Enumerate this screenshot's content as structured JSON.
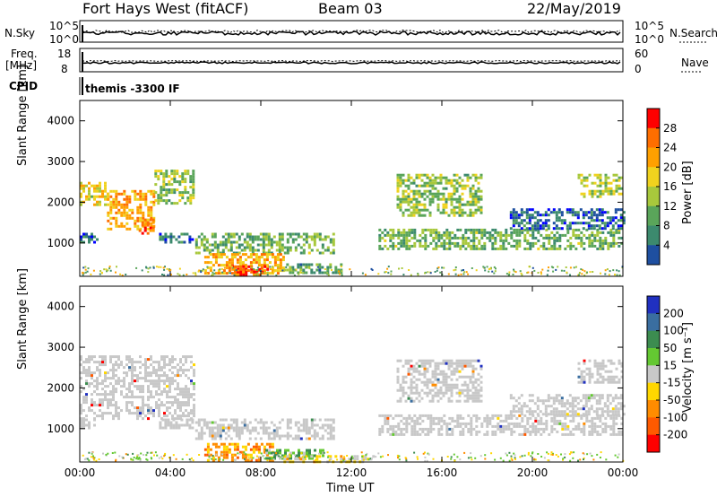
{
  "header": {
    "station": "Fort Hays West (fitACF)",
    "beam": "Beam 03",
    "date": "22/May/2019"
  },
  "strip_labels": {
    "nsky": "N.Sky",
    "nsky_ticks": [
      "10^5",
      "10^0"
    ],
    "nsearch": "N.Search",
    "nsearch_ticks": [
      "10^5",
      "10^0"
    ],
    "freq_line1": "Freq.",
    "freq_line2": "[MHz]",
    "freq_ticks": [
      "18",
      "8"
    ],
    "nave": "Nave",
    "nave_ticks": [
      "60",
      "0"
    ],
    "cpid": "CPID",
    "cpid_value": "themis -3300 IF"
  },
  "colors": {
    "power_scale": [
      "#0000ff",
      "#1e4fa0",
      "#3c8a6e",
      "#5aa55a",
      "#a8c83c",
      "#f0d21e",
      "#ffa000",
      "#ff6e00",
      "#ff0000"
    ],
    "velocity_scale": [
      "#2030c0",
      "#3a6ea0",
      "#3c8c50",
      "#64c832",
      "#c8c8c8",
      "#ffd700",
      "#ff8c00",
      "#ff5a00",
      "#ff0000"
    ],
    "noise_gray": "#c8c8c8"
  },
  "chart_data": [
    {
      "type": "heatmap",
      "title": "Power",
      "ylabel": "Slant Range [km]",
      "xlabel": "Time UT",
      "x_ticks": [
        "00:00",
        "04:00",
        "08:00",
        "12:00",
        "16:00",
        "20:00",
        "00:00"
      ],
      "xlim_hours": [
        0,
        24
      ],
      "ylim_km": [
        180,
        4500
      ],
      "y_ticks": [
        "1000",
        "2000",
        "3000",
        "4000"
      ],
      "y_tick_values": [
        1000,
        2000,
        3000,
        4000
      ],
      "colorbar_label": "Power [dB]",
      "colorbar_ticks": [
        "28",
        "24",
        "20",
        "16",
        "12",
        "8",
        "4"
      ],
      "colorbar_range": [
        0,
        30
      ],
      "echo_regions": [
        {
          "t_start": 0.0,
          "t_end": 1.2,
          "range_low": 1950,
          "range_high": 2500,
          "level": 18
        },
        {
          "t_start": 1.2,
          "t_end": 3.3,
          "range_low": 1350,
          "range_high": 2300,
          "level": 22
        },
        {
          "t_start": 2.6,
          "t_end": 3.2,
          "range_low": 1250,
          "range_high": 1600,
          "level": 24
        },
        {
          "t_start": 3.3,
          "t_end": 5.0,
          "range_low": 2000,
          "range_high": 2800,
          "level": 14
        },
        {
          "t_start": 0.0,
          "t_end": 0.8,
          "range_low": 1050,
          "range_high": 1250,
          "level": 6
        },
        {
          "t_start": 3.5,
          "t_end": 5.0,
          "range_low": 1050,
          "range_high": 1250,
          "level": 6
        },
        {
          "t_start": 5.1,
          "t_end": 11.2,
          "range_low": 750,
          "range_high": 1250,
          "level": 12
        },
        {
          "t_start": 5.5,
          "t_end": 9.0,
          "range_low": 250,
          "range_high": 750,
          "level": 22
        },
        {
          "t_start": 6.7,
          "t_end": 8.3,
          "range_low": 250,
          "range_high": 450,
          "level": 28
        },
        {
          "t_start": 9.0,
          "t_end": 11.5,
          "range_low": 250,
          "range_high": 500,
          "level": 10
        },
        {
          "t_start": 13.2,
          "t_end": 24.0,
          "range_low": 850,
          "range_high": 1350,
          "level": 12
        },
        {
          "t_start": 14.0,
          "t_end": 17.8,
          "range_low": 1700,
          "range_high": 2700,
          "level": 14
        },
        {
          "t_start": 22.0,
          "t_end": 24.0,
          "range_low": 2150,
          "range_high": 2700,
          "level": 16
        },
        {
          "t_start": 19.0,
          "t_end": 24.0,
          "range_low": 1350,
          "range_high": 1850,
          "level": 5
        }
      ]
    },
    {
      "type": "heatmap",
      "title": "Velocity",
      "ylabel": "Slant Range [km]",
      "xlabel": "Time UT",
      "x_ticks": [
        "00:00",
        "04:00",
        "08:00",
        "12:00",
        "16:00",
        "20:00",
        "00:00"
      ],
      "xlim_hours": [
        0,
        24
      ],
      "ylim_km": [
        180,
        4500
      ],
      "y_ticks": [
        "1000",
        "2000",
        "3000",
        "4000"
      ],
      "y_tick_values": [
        1000,
        2000,
        3000,
        4000
      ],
      "colorbar_label": "Velocity [m s⁻¹]",
      "colorbar_ticks": [
        "200",
        "100",
        "50",
        "15",
        "-15",
        "-50",
        "-100",
        "-200"
      ],
      "colorbar_range": [
        -250,
        250
      ],
      "echo_regions": [
        {
          "t_start": 0.0,
          "t_end": 5.0,
          "range_low": 1250,
          "range_high": 2800,
          "velocity": 0
        },
        {
          "t_start": 0.0,
          "t_end": 0.8,
          "range_low": 1050,
          "range_high": 1250,
          "velocity": 0
        },
        {
          "t_start": 3.5,
          "t_end": 5.0,
          "range_low": 1050,
          "range_high": 1250,
          "velocity": 0
        },
        {
          "t_start": 5.1,
          "t_end": 11.2,
          "range_low": 750,
          "range_high": 1250,
          "velocity": 0
        },
        {
          "t_start": 5.5,
          "t_end": 8.5,
          "range_low": 250,
          "range_high": 650,
          "velocity": -70
        },
        {
          "t_start": 8.2,
          "t_end": 10.8,
          "range_low": 300,
          "range_high": 500,
          "velocity": 40
        },
        {
          "t_start": 9.0,
          "t_end": 13.0,
          "range_low": 200,
          "range_high": 350,
          "velocity": -30
        },
        {
          "t_start": 13.2,
          "t_end": 24.0,
          "range_low": 850,
          "range_high": 1350,
          "velocity": 0
        },
        {
          "t_start": 14.0,
          "t_end": 17.8,
          "range_low": 1700,
          "range_high": 2700,
          "velocity": 0
        },
        {
          "t_start": 22.0,
          "t_end": 24.0,
          "range_low": 2150,
          "range_high": 2700,
          "velocity": 0
        },
        {
          "t_start": 19.0,
          "t_end": 24.0,
          "range_low": 1350,
          "range_high": 1850,
          "velocity": 0
        }
      ]
    }
  ]
}
